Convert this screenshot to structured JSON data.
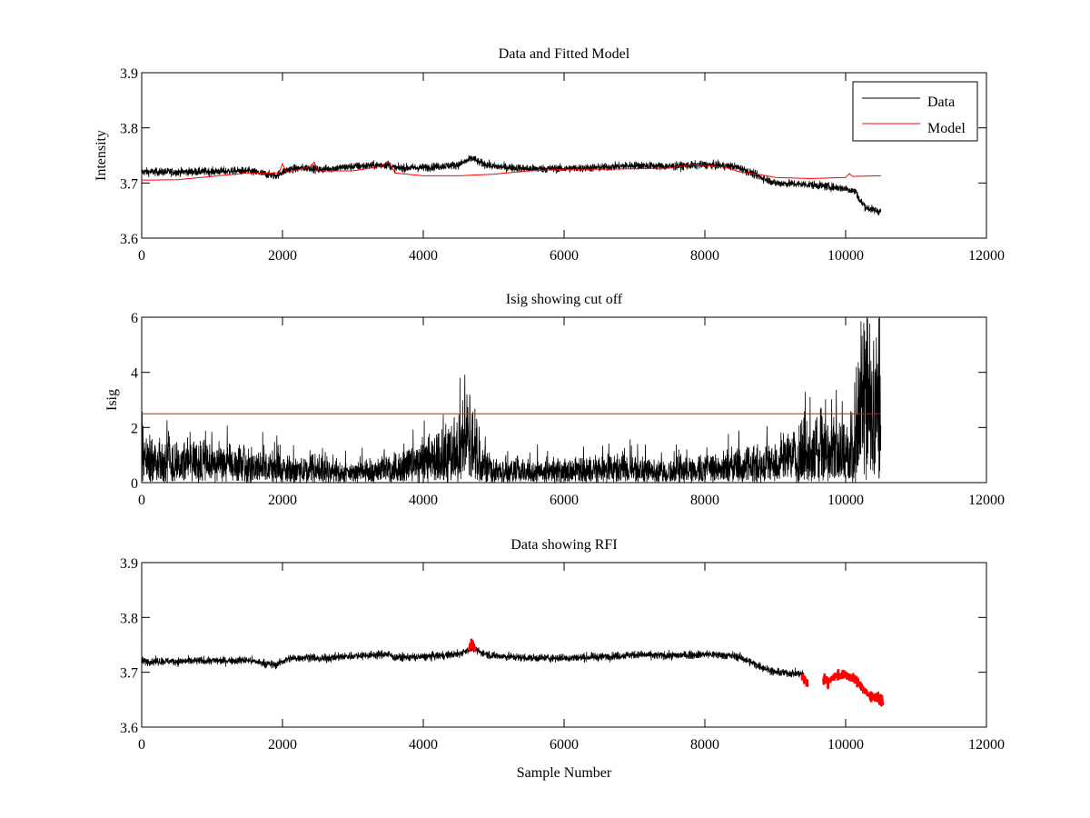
{
  "chart_data": [
    {
      "type": "line",
      "title": "Data and Fitted Model",
      "xlabel": "",
      "ylabel": "Intensity",
      "xlim": [
        0,
        12000
      ],
      "ylim": [
        3.6,
        3.9
      ],
      "xticks": [
        "0",
        "2000",
        "4000",
        "6000",
        "8000",
        "10000",
        "12000"
      ],
      "yticks": [
        "3.6",
        "3.7",
        "3.8",
        "3.9"
      ],
      "legend": {
        "position": "top-right",
        "entries": [
          "Data",
          "Model"
        ]
      },
      "series": [
        {
          "name": "Data",
          "color": "#000000",
          "style": "noisy-line",
          "noise": 0.009,
          "x": [
            0,
            500,
            1000,
            1500,
            1900,
            2000,
            2100,
            2400,
            2500,
            3000,
            3500,
            3600,
            4000,
            4500,
            4700,
            4800,
            5000,
            5500,
            6000,
            6500,
            7000,
            7500,
            8000,
            8400,
            8500,
            8800,
            9000,
            9500,
            10000,
            10150,
            10200,
            10300,
            10400,
            10500
          ],
          "y": [
            3.72,
            3.72,
            3.721,
            3.722,
            3.713,
            3.72,
            3.725,
            3.728,
            3.724,
            3.73,
            3.733,
            3.727,
            3.728,
            3.733,
            3.745,
            3.737,
            3.73,
            3.726,
            3.726,
            3.728,
            3.732,
            3.73,
            3.733,
            3.73,
            3.727,
            3.71,
            3.7,
            3.697,
            3.69,
            3.684,
            3.668,
            3.655,
            3.651,
            3.648
          ]
        },
        {
          "name": "Model",
          "color": "#ff0000",
          "style": "line",
          "x": [
            0,
            500,
            1000,
            1500,
            1950,
            2000,
            2050,
            2100,
            2400,
            2450,
            2500,
            3000,
            3400,
            3500,
            3600,
            4000,
            4500,
            5000,
            5500,
            6000,
            6500,
            7000,
            7500,
            7800,
            8000,
            8300,
            8500,
            8800,
            9000,
            9500,
            10000,
            10050,
            10100,
            10500
          ],
          "y": [
            3.705,
            3.706,
            3.712,
            3.718,
            3.718,
            3.735,
            3.72,
            3.72,
            3.73,
            3.738,
            3.722,
            3.722,
            3.73,
            3.74,
            3.718,
            3.713,
            3.713,
            3.716,
            3.722,
            3.725,
            3.725,
            3.726,
            3.727,
            3.733,
            3.732,
            3.728,
            3.72,
            3.715,
            3.71,
            3.708,
            3.71,
            3.717,
            3.712,
            3.713
          ]
        }
      ]
    },
    {
      "type": "line",
      "title": "Isig showing cut off",
      "xlabel": "",
      "ylabel": "Isig",
      "xlim": [
        0,
        12000
      ],
      "ylim": [
        0,
        6
      ],
      "xticks": [
        "0",
        "2000",
        "4000",
        "6000",
        "8000",
        "10000",
        "12000"
      ],
      "yticks": [
        "0",
        "2",
        "4",
        "6"
      ],
      "series": [
        {
          "name": "",
          "color": "#000000",
          "style": "spiky",
          "x": [
            0,
            1000,
            2000,
            3000,
            3500,
            4000,
            4300,
            4500,
            4700,
            4800,
            5000,
            6000,
            7000,
            7500,
            8000,
            8500,
            9000,
            9500,
            9800,
            10000,
            10150,
            10200,
            10300,
            10500
          ],
          "y": [
            1.2,
            1.0,
            0.7,
            0.5,
            0.7,
            1.0,
            1.4,
            1.6,
            2.4,
            1.4,
            0.6,
            0.6,
            0.7,
            0.6,
            0.7,
            0.9,
            1.1,
            1.6,
            1.9,
            1.4,
            1.8,
            3.6,
            3.9,
            4.0
          ]
        },
        {
          "name": "",
          "color": "#ff0000",
          "style": "line",
          "x": [
            0,
            10500
          ],
          "y": [
            2.5,
            2.5
          ]
        }
      ]
    },
    {
      "type": "line",
      "title": "Data showing RFI",
      "xlabel": "Sample Number",
      "ylabel": "",
      "xlim": [
        0,
        12000
      ],
      "ylim": [
        3.6,
        3.9
      ],
      "xticks": [
        "0",
        "2000",
        "4000",
        "6000",
        "8000",
        "10000",
        "12000"
      ],
      "yticks": [
        "3.6",
        "3.7",
        "3.8",
        "3.9"
      ],
      "series": [
        {
          "name": "",
          "color": "#000000",
          "style": "noisy-line",
          "noise": 0.009,
          "x": [
            0,
            500,
            1000,
            1500,
            1900,
            2000,
            2100,
            2400,
            2500,
            3000,
            3500,
            3600,
            4000,
            4500,
            4700,
            4800,
            5000,
            5500,
            6000,
            6500,
            7000,
            7500,
            8000,
            8400,
            8500,
            8800,
            9000,
            9400
          ],
          "y": [
            3.72,
            3.72,
            3.721,
            3.722,
            3.713,
            3.72,
            3.725,
            3.728,
            3.724,
            3.73,
            3.733,
            3.727,
            3.728,
            3.733,
            3.745,
            3.737,
            3.73,
            3.726,
            3.726,
            3.728,
            3.732,
            3.73,
            3.733,
            3.73,
            3.727,
            3.71,
            3.7,
            3.697
          ]
        },
        {
          "name": "",
          "color": "#ff0000",
          "style": "markers",
          "noise": 0.01,
          "x": [
            4650,
            4700,
            4730,
            9400,
            9450,
            9700,
            9750,
            9800,
            9900,
            10000,
            10100,
            10200,
            10300,
            10400,
            10500
          ],
          "y": [
            3.745,
            3.752,
            3.742,
            3.69,
            3.682,
            3.688,
            3.682,
            3.69,
            3.695,
            3.695,
            3.688,
            3.68,
            3.66,
            3.655,
            3.65
          ]
        }
      ]
    }
  ]
}
